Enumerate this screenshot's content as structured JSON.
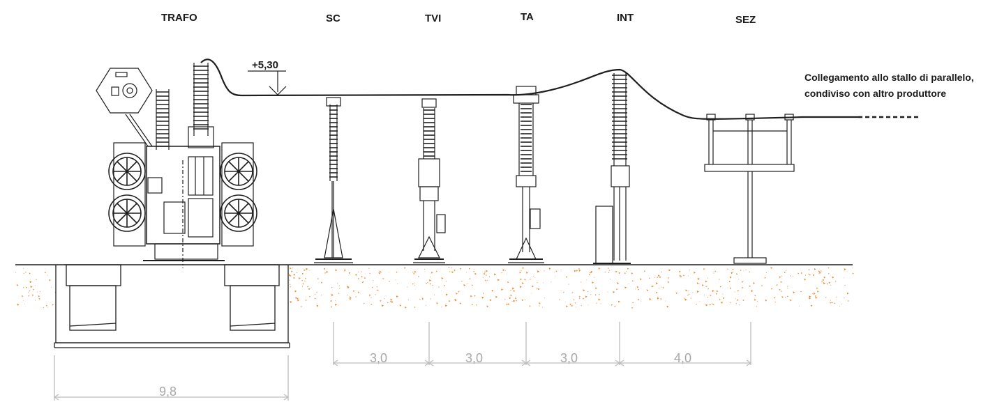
{
  "equipment_labels": {
    "trafo": "TRAFO",
    "sc": "SC",
    "tvi": "TVI",
    "ta": "TA",
    "int": "INT",
    "sez": "SEZ"
  },
  "elevation": "+5,30",
  "note": {
    "line1": "Collegamento allo stallo di parallelo,",
    "line2": "condiviso con altro produttore"
  },
  "dimensions": {
    "trafo_width": "9,8",
    "sc_tvi": "3,0",
    "tvi_ta": "3,0",
    "ta_int": "3,0",
    "int_sez": "4,0"
  },
  "colors": {
    "line": "#1e1e1e",
    "soil": "#e8892a",
    "dimension": "#a8a8a8"
  }
}
